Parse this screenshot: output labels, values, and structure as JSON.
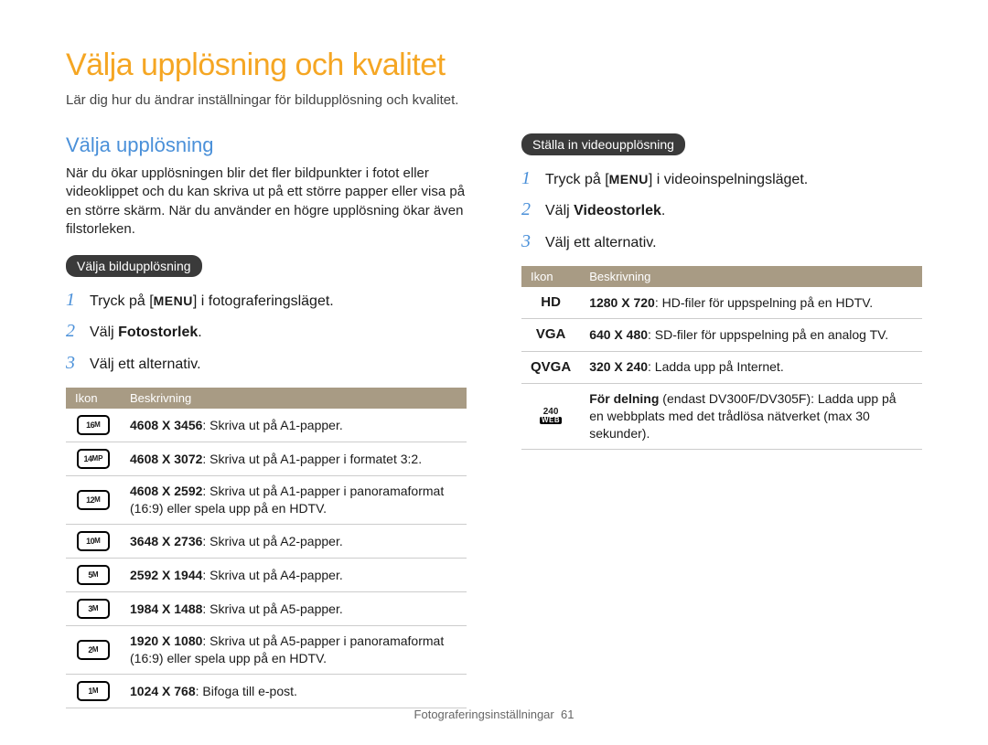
{
  "colors": {
    "accent_orange": "#f5a623",
    "accent_blue": "#4a90d9",
    "pill_bg": "#3a3a3a",
    "table_header_bg": "#a89b84",
    "text": "#1a1a1a",
    "border": "#cccccc"
  },
  "title": "Välja upplösning och kvalitet",
  "intro": "Lär dig hur du ändrar inställningar för bildupplösning och kvalitet.",
  "left": {
    "heading": "Välja upplösning",
    "paragraph": "När du ökar upplösningen blir det fler bildpunkter i fotot eller videoklippet och du kan skriva ut på ett större papper eller visa på en större skärm. När du använder en högre upplösning ökar även filstorleken.",
    "pill": "Välja bildupplösning",
    "steps": [
      {
        "num": "1",
        "pre": "Tryck på [",
        "btn": "MENU",
        "post": "] i fotograferingsläget."
      },
      {
        "num": "2",
        "pre": "Välj ",
        "bold": "Fotostorlek",
        "post": "."
      },
      {
        "num": "3",
        "pre": "Välj ett alternativ."
      }
    ],
    "table": {
      "headers": [
        "Ikon",
        "Beskrivning"
      ],
      "rows": [
        {
          "icon_big": "16",
          "icon_small": "M",
          "res": "4608 X 3456",
          "desc": ": Skriva ut på A1-papper."
        },
        {
          "icon_big": "14",
          "icon_small": "MP",
          "res": "4608 X 3072",
          "desc": ": Skriva ut på A1-papper i formatet 3:2."
        },
        {
          "icon_big": "12",
          "icon_small": "M",
          "res": "4608 X 2592",
          "desc": ": Skriva ut på A1-papper i panoramaformat (16:9) eller spela upp på en HDTV."
        },
        {
          "icon_big": "10",
          "icon_small": "M",
          "res": "3648 X 2736",
          "desc": ": Skriva ut på A2-papper."
        },
        {
          "icon_big": "5",
          "icon_small": "M",
          "res": "2592 X 1944",
          "desc": ": Skriva ut på A4-papper."
        },
        {
          "icon_big": "3",
          "icon_small": "M",
          "res": "1984 X 1488",
          "desc": ": Skriva ut på A5-papper."
        },
        {
          "icon_big": "2",
          "icon_small": "M",
          "res": "1920 X 1080",
          "desc": ": Skriva ut på A5-papper i panoramaformat (16:9) eller spela upp på en HDTV."
        },
        {
          "icon_big": "1",
          "icon_small": "M",
          "res": "1024 X 768",
          "desc": ": Bifoga till e-post."
        }
      ]
    }
  },
  "right": {
    "pill": "Ställa in videoupplösning",
    "steps": [
      {
        "num": "1",
        "pre": "Tryck på [",
        "btn": "MENU",
        "post": "] i videoinspelningsläget."
      },
      {
        "num": "2",
        "pre": "Välj ",
        "bold": "Videostorlek",
        "post": "."
      },
      {
        "num": "3",
        "pre": "Välj ett alternativ."
      }
    ],
    "table": {
      "headers": [
        "Ikon",
        "Beskrivning"
      ],
      "rows": [
        {
          "icon_text": "HD",
          "res": "1280 X 720",
          "desc": ": HD-filer för uppspelning på en HDTV."
        },
        {
          "icon_text": "VGA",
          "res": "640 X 480",
          "desc": ": SD-filer för uppspelning på en analog TV."
        },
        {
          "icon_text": "QVGA",
          "res": "320 X 240",
          "desc": ": Ladda upp på Internet."
        },
        {
          "icon_stack_top": "240",
          "icon_stack_bot": "WEB",
          "res_bold": "För delning",
          "desc": " (endast DV300F/DV305F): Ladda upp på en webbplats med det trådlösa nätverket (max 30 sekunder)."
        }
      ]
    }
  },
  "footer": {
    "label": "Fotograferingsinställningar",
    "page": "61"
  }
}
